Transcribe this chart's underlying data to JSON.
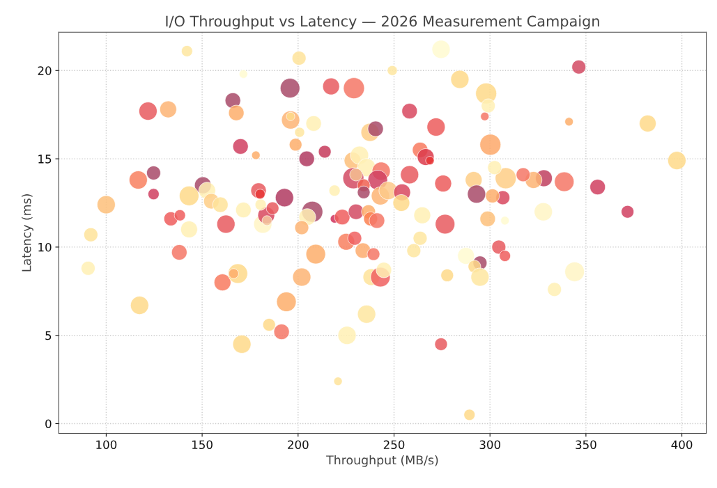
{
  "chart_data": {
    "type": "bubble",
    "title": "I/O Throughput vs Latency — 2026 Measurement Campaign",
    "xlabel": "Throughput (MB/s)",
    "ylabel": "Latency (ms)",
    "x": [
      142.1,
      200.5,
      171.5,
      274.5,
      249.1,
      166.0,
      167.8,
      121.8,
      132.3,
      170.0,
      178.0,
      124.7,
      116.7,
      124.7,
      100.0,
      92.0,
      150.4,
      152.6,
      143.2,
      154.8,
      159.5,
      171.5,
      179.4,
      180.2,
      133.7,
      138.4,
      143.2,
      162.4,
      181.6,
      183.4,
      183.8,
      180.5,
      186.7,
      90.6,
      138.1,
      117.4,
      160.6,
      168.6,
      166.4,
      184.9,
      170.7,
      191.4,
      209.2,
      201.9,
      193.9,
      225.1,
      229.5,
      233.8,
      239.3,
      238.2,
      242.9,
      244.7,
      235.7,
      225.5,
      220.8,
      263.6,
      260.3,
      277.7,
      274.5,
      287.5,
      294.8,
      291.9,
      294.8,
      289.3,
      304.6,
      307.8,
      344.1,
      333.6,
      346.3,
      341.2,
      382.2,
      397.4,
      356.1,
      371.7,
      327.8,
      307.8,
      338.7,
      328.1,
      322.7,
      317.3,
      308.2,
      302.4,
      306.7,
      301.3,
      298.8,
      298.0,
      299.1,
      300.2,
      195.8,
      217.2,
      229.1,
      284.3,
      196.1,
      196.1,
      208.1,
      200.8,
      198.7,
      204.5,
      213.9,
      258.1,
      271.9,
      297.3,
      237.5,
      240.4,
      228.4,
      232.0,
      235.7,
      228.8,
      230.2,
      243.3,
      241.5,
      234.2,
      234.2,
      242.9,
      246.9,
      254.2,
      253.8,
      258.1,
      263.6,
      266.5,
      268.7,
      275.6,
      264.7,
      276.6,
      291.5,
      293.0,
      219.0,
      192.9,
      207.4,
      204.8,
      219.0,
      223.0,
      230.2,
      236.7,
      237.8,
      241.1,
      201.9
    ],
    "values": [
      21.1,
      20.7,
      19.8,
      21.2,
      20.0,
      18.3,
      17.6,
      17.7,
      17.8,
      15.7,
      15.2,
      14.2,
      13.8,
      13.0,
      12.4,
      10.7,
      13.5,
      13.2,
      12.9,
      12.6,
      12.4,
      12.1,
      13.2,
      13.0,
      11.6,
      11.8,
      11.0,
      11.3,
      11.3,
      11.8,
      11.5,
      12.4,
      12.2,
      8.8,
      9.7,
      6.7,
      8.0,
      8.5,
      8.5,
      5.6,
      4.5,
      5.2,
      9.6,
      8.3,
      6.9,
      10.3,
      10.5,
      9.8,
      9.6,
      8.3,
      8.3,
      8.7,
      6.2,
      5.0,
      2.4,
      10.5,
      9.8,
      8.4,
      4.5,
      9.5,
      9.1,
      8.9,
      8.3,
      0.5,
      10.0,
      9.5,
      8.6,
      7.6,
      20.2,
      17.1,
      17.0,
      14.9,
      13.4,
      12.0,
      12.0,
      11.5,
      13.7,
      13.9,
      13.8,
      14.1,
      13.9,
      14.5,
      12.8,
      12.9,
      11.6,
      18.7,
      18.0,
      15.8,
      19.0,
      19.1,
      19.0,
      19.5,
      17.2,
      17.4,
      17.0,
      16.5,
      15.8,
      15.0,
      15.4,
      17.7,
      16.8,
      17.4,
      16.5,
      16.7,
      14.9,
      15.2,
      14.5,
      13.9,
      14.1,
      14.3,
      13.8,
      13.5,
      13.1,
      12.9,
      13.2,
      13.1,
      12.5,
      14.1,
      15.5,
      15.1,
      14.9,
      13.6,
      11.8,
      11.3,
      13.8,
      13.0,
      13.2,
      12.8,
      12.0,
      11.7,
      11.6,
      11.7,
      12.0,
      12.0,
      11.6,
      11.5,
      11.1
    ],
    "sizes": [
      0.28,
      0.44,
      0.16,
      0.75,
      0.22,
      0.54,
      0.54,
      0.75,
      0.64,
      0.54,
      0.16,
      0.44,
      0.75,
      0.28,
      0.75,
      0.44,
      0.64,
      0.64,
      0.87,
      0.54,
      0.54,
      0.54,
      0.54,
      0.22,
      0.44,
      0.28,
      0.64,
      0.75,
      0.75,
      0.64,
      0.22,
      0.28,
      0.36,
      0.44,
      0.54,
      0.75,
      0.64,
      0.87,
      0.22,
      0.36,
      0.75,
      0.54,
      0.87,
      0.75,
      0.87,
      0.64,
      0.44,
      0.54,
      0.36,
      0.64,
      0.87,
      0.54,
      0.75,
      0.75,
      0.16,
      0.44,
      0.44,
      0.36,
      0.36,
      0.64,
      0.44,
      0.36,
      0.75,
      0.28,
      0.44,
      0.28,
      0.87,
      0.44,
      0.44,
      0.16,
      0.64,
      0.75,
      0.54,
      0.36,
      0.75,
      0.16,
      0.87,
      0.64,
      0.64,
      0.44,
      1.0,
      0.44,
      0.44,
      0.44,
      0.54,
      1.0,
      0.44,
      1.0,
      0.87,
      0.64,
      1.0,
      0.75,
      0.75,
      0.16,
      0.54,
      0.22,
      0.36,
      0.54,
      0.36,
      0.54,
      0.75,
      0.16,
      0.75,
      0.54,
      0.64,
      0.75,
      0.75,
      1.0,
      0.36,
      0.75,
      0.87,
      0.36,
      0.36,
      0.75,
      0.75,
      0.64,
      0.64,
      0.75,
      0.54,
      0.64,
      0.16,
      0.64,
      0.64,
      0.87,
      0.64,
      0.75,
      0.28,
      0.75,
      1.0,
      0.64,
      0.16,
      0.54,
      0.54,
      0.44,
      0.44,
      0.54,
      0.44
    ],
    "colors": [
      "#fee6a0",
      "#fee39a",
      "#fffad0",
      "#fffad0",
      "#fee6a0",
      "#a84a68",
      "#fdae6b",
      "#e85a5f",
      "#fdb474",
      "#d04060",
      "#fdae6b",
      "#a84a68",
      "#f8805f",
      "#d04060",
      "#fdbf7a",
      "#fee39a",
      "#a84a68",
      "#fff0b4",
      "#fed98a",
      "#fece86",
      "#fee39a",
      "#fff0b4",
      "#e85a5f",
      "#e83535",
      "#ee5d5d",
      "#ee5d5d",
      "#fff0b4",
      "#e85a5f",
      "#fff5c4",
      "#d8485f",
      "#f5c8a0",
      "#fff0b4",
      "#e85a5f",
      "#fff0b4",
      "#f47766",
      "#fed98a",
      "#f87a5f",
      "#fed98a",
      "#fdae6b",
      "#fed98a",
      "#fed98a",
      "#f47766",
      "#fdae6b",
      "#fdb474",
      "#fdae6b",
      "#f88060",
      "#f06060",
      "#fdab6e",
      "#f47766",
      "#fee39a",
      "#f06060",
      "#fff0b4",
      "#fee6a0",
      "#fff0b4",
      "#fee39a",
      "#fee6a0",
      "#fee6a0",
      "#fed98a",
      "#e85a5f",
      "#fffad0",
      "#a84a68",
      "#fed98a",
      "#fee6a0",
      "#fed98a",
      "#e85a5f",
      "#ee5d5d",
      "#fff5c4",
      "#fff0b4",
      "#d24a63",
      "#fdae6b",
      "#fed98a",
      "#fed98a",
      "#d04060",
      "#d04060",
      "#fff5c4",
      "#fffad0",
      "#f47766",
      "#c0405f",
      "#fdb474",
      "#f47766",
      "#fece86",
      "#fff0b4",
      "#d8485f",
      "#fdae6b",
      "#fdbf7a",
      "#fed98a",
      "#fff0b4",
      "#fda86a",
      "#a84a68",
      "#e85a5f",
      "#f47766",
      "#fed98a",
      "#fdb474",
      "#fed98a",
      "#fff0b4",
      "#fee6a0",
      "#fdae6b",
      "#b03a60",
      "#c63a5a",
      "#d8485f",
      "#ec5c5c",
      "#f47766",
      "#fece86",
      "#a84a68",
      "#fdbf7a",
      "#fff0b4",
      "#fff0b4",
      "#d24a63",
      "#f5c090",
      "#f47766",
      "#d04060",
      "#f06050",
      "#a84a68",
      "#fdb474",
      "#fdc98a",
      "#d8485f",
      "#fed98a",
      "#e85a5f",
      "#f87a5f",
      "#dc3a4a",
      "#e83535",
      "#ec5c5c",
      "#fff0b4",
      "#e85a5f",
      "#fece86",
      "#a84a68",
      "#fff0b4",
      "#b03a60",
      "#a84a68",
      "#fff0b4",
      "#d0305a",
      "#ee5d5d",
      "#d24a63",
      "#fdae6b",
      "#fb8050",
      "#f47766",
      "#fdb474"
    ],
    "xlim": [
      75.3,
      412.7
    ],
    "ylim": [
      -0.55,
      22.17
    ],
    "xticks": [
      100,
      150,
      200,
      250,
      300,
      350,
      400
    ],
    "yticks": [
      0,
      5,
      10,
      15,
      20
    ],
    "grid": true
  }
}
